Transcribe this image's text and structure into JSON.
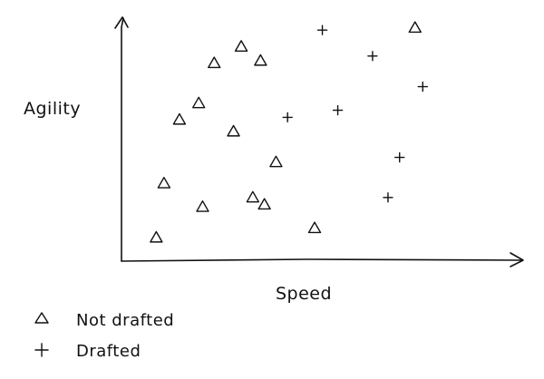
{
  "chart_data": {
    "type": "scatter",
    "title": "",
    "xlabel": "Speed",
    "ylabel": "Agility",
    "xlim": [
      0,
      100
    ],
    "ylim": [
      0,
      100
    ],
    "grid": false,
    "legend_placement": "bottom-left",
    "series": [
      {
        "name": "Not drafted",
        "marker": "triangle",
        "color": "#111111",
        "points": [
          {
            "x": 31,
            "y": 91
          },
          {
            "x": 24,
            "y": 84
          },
          {
            "x": 36,
            "y": 85
          },
          {
            "x": 20,
            "y": 67
          },
          {
            "x": 15,
            "y": 60
          },
          {
            "x": 29,
            "y": 55
          },
          {
            "x": 40,
            "y": 42
          },
          {
            "x": 11,
            "y": 33
          },
          {
            "x": 21,
            "y": 23
          },
          {
            "x": 34,
            "y": 27
          },
          {
            "x": 37,
            "y": 24
          },
          {
            "x": 50,
            "y": 14
          },
          {
            "x": 9,
            "y": 10
          },
          {
            "x": 76,
            "y": 99
          }
        ]
      },
      {
        "name": "Drafted",
        "marker": "plus",
        "color": "#111111",
        "points": [
          {
            "x": 52,
            "y": 98
          },
          {
            "x": 65,
            "y": 87
          },
          {
            "x": 78,
            "y": 74
          },
          {
            "x": 56,
            "y": 64
          },
          {
            "x": 43,
            "y": 61
          },
          {
            "x": 72,
            "y": 44
          },
          {
            "x": 69,
            "y": 27
          }
        ]
      }
    ]
  }
}
